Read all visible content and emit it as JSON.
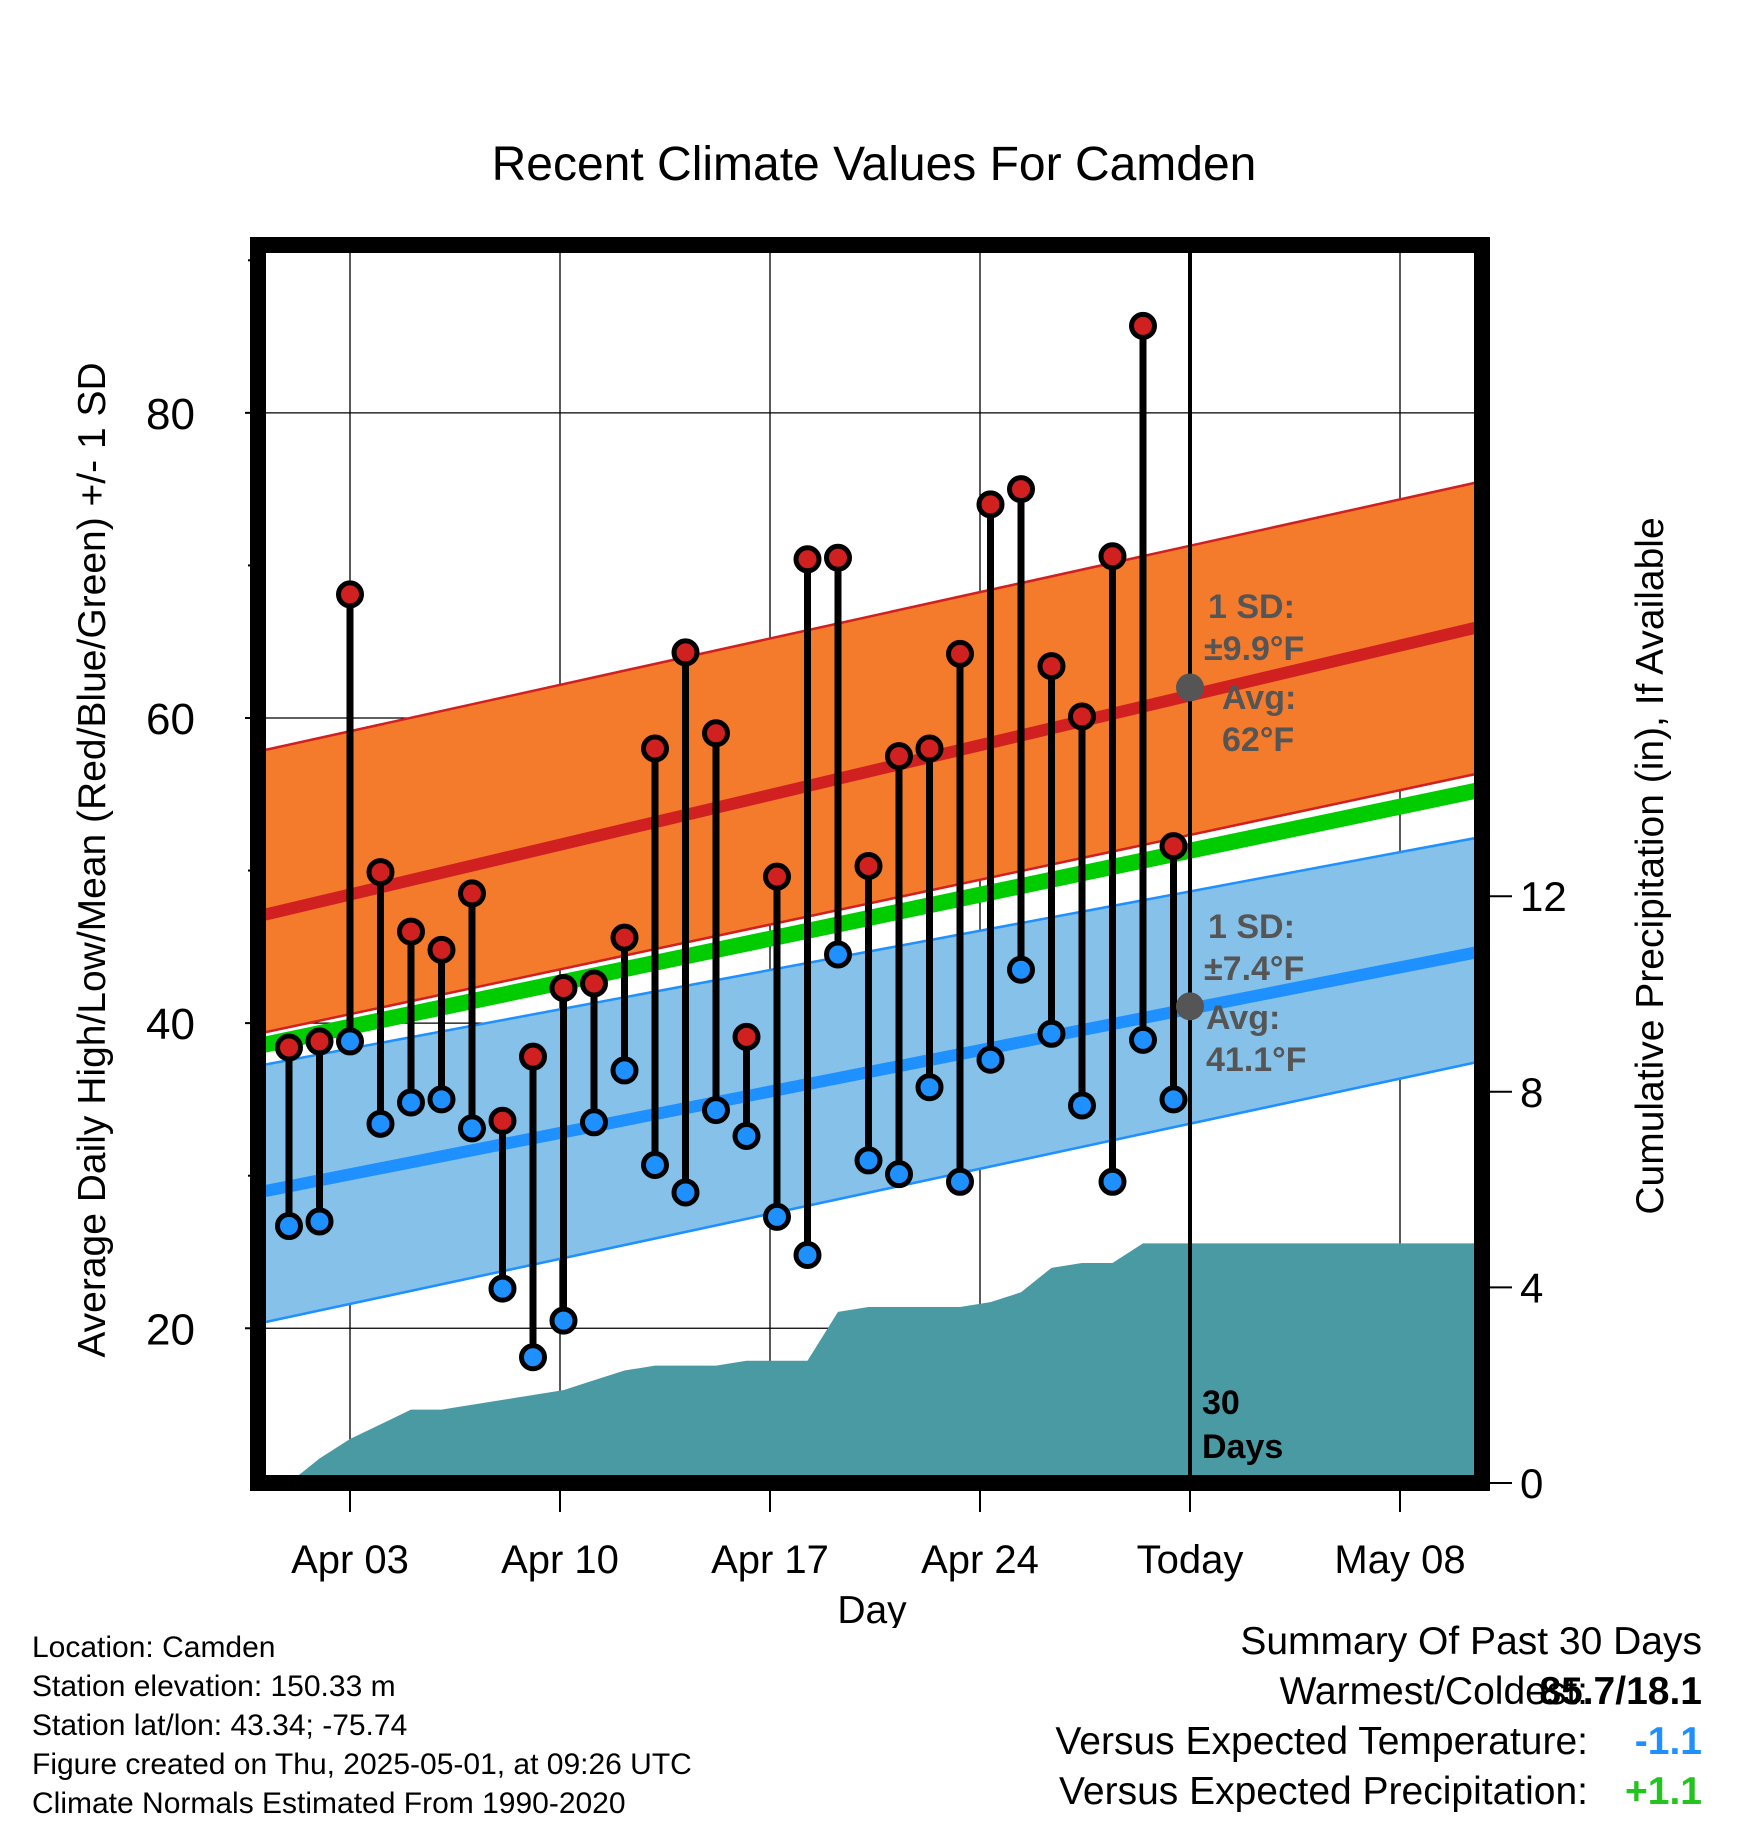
{
  "chart_data": {
    "type": "line",
    "title": "Recent Climate Values For Camden",
    "xlabel": "Day",
    "ylabel": "Average Daily High/Low/Mean (Red/Blue/Green) +/- 1 SD",
    "y2label": "Cumulative Precipitation (in), If Available",
    "x_tick_labels": [
      "Apr 03",
      "Apr 10",
      "Apr 17",
      "Apr 24",
      "Today",
      "May 08"
    ],
    "y_ticks": [
      20,
      40,
      60,
      80
    ],
    "y2_ticks": [
      0,
      4,
      8,
      12
    ],
    "ylim": [
      10,
      90
    ],
    "y2lim": [
      0,
      22
    ],
    "grid": true,
    "days": [
      "Apr 02",
      "Apr 03",
      "Apr 04",
      "Apr 05",
      "Apr 06",
      "Apr 07",
      "Apr 08",
      "Apr 09",
      "Apr 10",
      "Apr 11",
      "Apr 12",
      "Apr 13",
      "Apr 14",
      "Apr 15",
      "Apr 16",
      "Apr 17",
      "Apr 18",
      "Apr 19",
      "Apr 20",
      "Apr 21",
      "Apr 22",
      "Apr 23",
      "Apr 24",
      "Apr 25",
      "Apr 26",
      "Apr 27",
      "Apr 28",
      "Apr 29",
      "Apr 30",
      "May 01"
    ],
    "series": [
      {
        "name": "High",
        "color": "#cc2020",
        "values": [
          38.4,
          38.8,
          68.1,
          49.9,
          46.0,
          44.8,
          48.5,
          33.6,
          37.8,
          42.3,
          42.6,
          45.6,
          58.0,
          64.3,
          59.0,
          39.1,
          49.6,
          70.4,
          70.5,
          50.3,
          57.5,
          58.0,
          64.2,
          74.0,
          75.0,
          63.4,
          60.1,
          70.6,
          85.7,
          51.6
        ]
      },
      {
        "name": "Low",
        "color": "#1E90FF",
        "values": [
          26.7,
          27.0,
          38.8,
          33.4,
          34.8,
          35.0,
          33.1,
          22.6,
          18.1,
          20.5,
          33.5,
          36.9,
          30.7,
          28.9,
          34.3,
          32.6,
          27.3,
          24.8,
          44.5,
          31.0,
          30.1,
          35.8,
          29.6,
          37.6,
          43.5,
          39.3,
          34.6,
          29.6,
          38.9,
          35.0
        ]
      }
    ],
    "normals": {
      "high_avg_start": 47.0,
      "high_avg_end": 66.0,
      "high_sd_lower_start": 39.3,
      "high_sd_lower_end": 56.4,
      "high_sd_upper_start": 57.8,
      "high_sd_upper_end": 75.5,
      "low_avg_start": 28.9,
      "low_avg_end": 44.7,
      "low_sd_lower_start": 20.3,
      "low_sd_lower_end": 37.5,
      "low_sd_upper_start": 37.2,
      "low_sd_upper_end": 52.2,
      "mean_start": 38.5,
      "mean_end": 55.3
    },
    "precipitation_cumulative": [
      0.0,
      0.5,
      0.9,
      1.2,
      1.5,
      1.5,
      1.6,
      1.7,
      1.8,
      1.9,
      2.1,
      2.3,
      2.4,
      2.4,
      2.4,
      2.5,
      2.5,
      2.5,
      3.5,
      3.6,
      3.6,
      3.6,
      3.6,
      3.7,
      3.9,
      4.4,
      4.5,
      4.5,
      4.9,
      4.9
    ],
    "annotations": {
      "high_sd_label_1": "1 SD:",
      "high_sd_label_2": "±9.9°F",
      "high_avg_label_1": "Avg:",
      "high_avg_label_2": "62°F",
      "high_avg_today": 62,
      "low_sd_label_1": "1 SD:",
      "low_sd_label_2": "±7.4°F",
      "low_avg_label_1": "Avg:",
      "low_avg_label_2": "41.1°F",
      "low_avg_today": 41.1,
      "days_label_1": "30",
      "days_label_2": "Days"
    },
    "colors": {
      "high_band": "#F47A2C",
      "high_line": "#d02020",
      "low_band": "#85C1E8",
      "low_line": "#1E90FF",
      "mean_line": "#00CC00",
      "precip": "#4A9AA3",
      "marker_gray": "#555555"
    }
  },
  "metadata": {
    "location": "Location: Camden",
    "elevation": "Station elevation: 150.33 m",
    "latlon": "Station lat/lon: 43.34; -75.74",
    "created": "Figure created on Thu, 2025-05-01, at 09:26 UTC",
    "normals": "Climate Normals Estimated From 1990-2020"
  },
  "summary": {
    "title": "Summary Of Past 30 Days",
    "warmest_coldest_label": "Warmest/Coldest:",
    "warmest_coldest_value": "85.7/18.1",
    "temp_label": "Versus Expected Temperature:",
    "temp_value": "-1.1",
    "precip_label": "Versus Expected Precipitation:",
    "precip_value": "+1.1"
  }
}
